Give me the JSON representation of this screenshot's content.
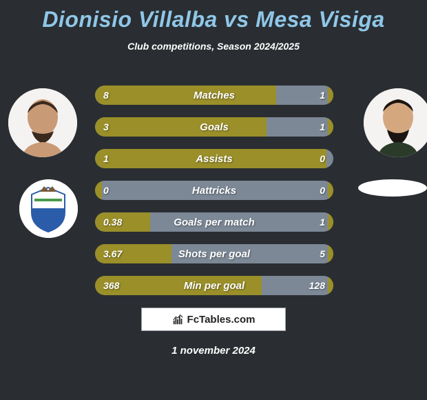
{
  "title_color": "#8fc7e8",
  "player_left": "Dionisio Villalba",
  "player_right": "Mesa Visiga",
  "subtitle": "Club competitions, Season 2024/2025",
  "stats": [
    {
      "label": "Matches",
      "left_val": "8",
      "right_val": "1",
      "left_pct": 76
    },
    {
      "label": "Goals",
      "left_val": "3",
      "right_val": "1",
      "left_pct": 72
    },
    {
      "label": "Assists",
      "left_val": "1",
      "right_val": "0",
      "left_pct": 97
    },
    {
      "label": "Hattricks",
      "left_val": "0",
      "right_val": "0",
      "left_pct": 3
    },
    {
      "label": "Goals per match",
      "left_val": "0.38",
      "right_val": "1",
      "left_pct": 23
    },
    {
      "label": "Shots per goal",
      "left_val": "3.67",
      "right_val": "5",
      "left_pct": 32
    },
    {
      "label": "Min per goal",
      "left_val": "368",
      "right_val": "128",
      "left_pct": 70
    }
  ],
  "colors": {
    "bg": "#2a2e32",
    "bar_left": "#9a8f29",
    "bar_base": "#7c8896",
    "title": "#8fc7e8",
    "text": "#ffffff"
  },
  "logo_text": "FcTables.com",
  "date_text": "1 november 2024"
}
